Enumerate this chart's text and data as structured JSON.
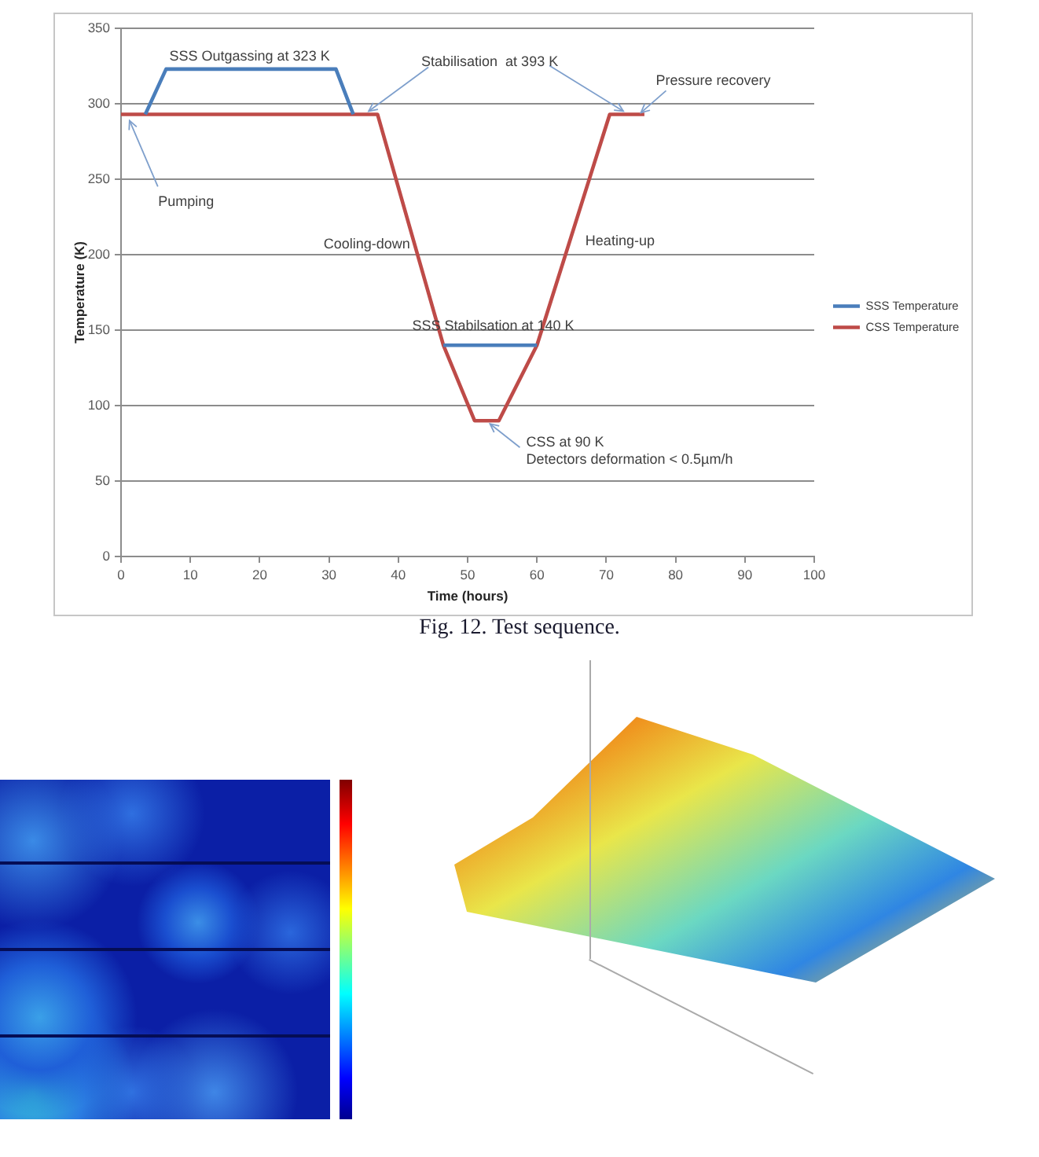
{
  "chart_data": {
    "type": "line",
    "xlabel": "Time (hours)",
    "ylabel": "Temperature (K)",
    "xlim": [
      0,
      100
    ],
    "xticks": [
      0,
      10,
      20,
      30,
      40,
      50,
      60,
      70,
      80,
      90,
      100
    ],
    "ylim": [
      0,
      350
    ],
    "yticks": [
      0,
      50,
      100,
      150,
      200,
      250,
      300,
      350
    ],
    "grid": "y",
    "legend": "right",
    "line_style": "solid",
    "series": [
      {
        "name": "SSS Temperature",
        "color": "#4a7ebb",
        "x": [
          3.5,
          6.5,
          31,
          33.5,
          40,
          46.5,
          60
        ],
        "values": [
          293,
          323,
          323,
          293,
          null,
          140,
          140
        ]
      },
      {
        "name": "CSS Temperature",
        "color": "#be4b48",
        "x": [
          0,
          37,
          46.5,
          51,
          54.5,
          60,
          70.5,
          75.5
        ],
        "values": [
          293,
          293,
          140,
          90,
          90,
          140,
          293,
          293
        ]
      }
    ],
    "annotations": [
      {
        "text": "SSS Outgassing at 323 K",
        "x": 19,
        "y": 323
      },
      {
        "text": "Stabilisation  at 393 K",
        "x": 35.5,
        "y": 293
      },
      {
        "text": "Pressure recovery",
        "x": 75,
        "y": 293
      },
      {
        "text": "Pumping",
        "x": 1,
        "y": 293
      },
      {
        "text": "Cooling-down",
        "x": 42.5,
        "y": 207
      },
      {
        "text": "Heating-up",
        "x": 64.5,
        "y": 209
      },
      {
        "text": "SSS Stabilsation at 140 K",
        "x": 53,
        "y": 140
      },
      {
        "text": "CSS at 90 K\nDetectors deformation < 0.5µm/h",
        "x": 53,
        "y": 90
      },
      "Fig. 12. Test sequence."
    ]
  }
}
